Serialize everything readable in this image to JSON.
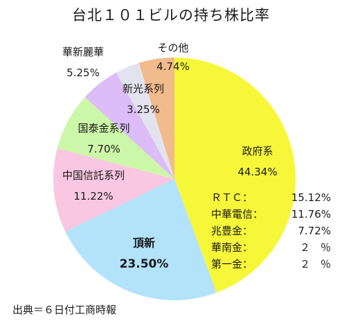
{
  "chart_data": {
    "type": "pie",
    "title": "台北１０１ビルの持ち株比率",
    "slices": [
      {
        "label": "政府系",
        "value": 44.34,
        "display": "44.34%",
        "color": "#f7f73a"
      },
      {
        "label": "頂新",
        "value": 23.5,
        "display": "23.50%",
        "color": "#b3e2fb"
      },
      {
        "label": "中国信託系列",
        "value": 11.22,
        "display": "11.22%",
        "color": "#f9c7e1"
      },
      {
        "label": "国泰金系列",
        "value": 7.7,
        "display": "7.70%",
        "color": "#ccf7a8"
      },
      {
        "label": "華新麗華",
        "value": 5.25,
        "display": "5.25%",
        "color": "#dcbdf7"
      },
      {
        "label": "新光系列",
        "value": 3.25,
        "display": "3.25%",
        "color": "#e3e3f0"
      },
      {
        "label": "その他",
        "value": 4.74,
        "display": "4.74%",
        "color": "#f1bb8c"
      }
    ],
    "breakdown": [
      {
        "name": "ＲＴＣ",
        "sep": "：",
        "value": "15.12%"
      },
      {
        "name": "中華電信",
        "sep": "：",
        "value": "11.76%"
      },
      {
        "name": "兆豊金",
        "sep": "：",
        "value": "7.72%"
      },
      {
        "name": "華南金",
        "sep": "：",
        "value": "２　％"
      },
      {
        "name": "第一金",
        "sep": "：",
        "value": "２　％"
      }
    ]
  },
  "source": "出典＝６日付工商時報"
}
